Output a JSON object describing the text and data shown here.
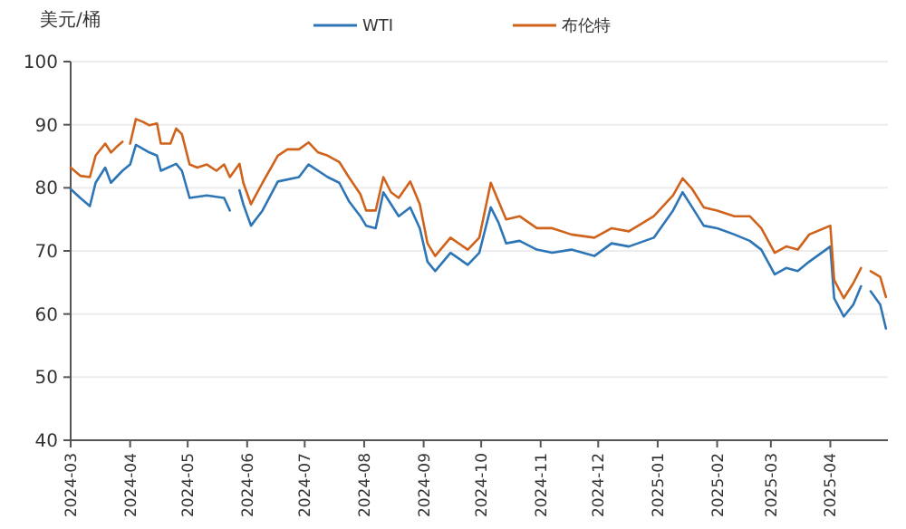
{
  "chart_data": {
    "type": "line",
    "ylabel": "美元/桶",
    "xlim": [
      "2024-03",
      "2025-05"
    ],
    "xticks": [
      "2024-03",
      "2024-04",
      "2024-05",
      "2024-06",
      "2024-07",
      "2024-08",
      "2024-09",
      "2024-10",
      "2024-11",
      "2024-12",
      "2025-01",
      "2025-02",
      "2025-03",
      "2025-04"
    ],
    "ylim": [
      40,
      100
    ],
    "yticks": [
      40,
      50,
      60,
      70,
      80,
      90,
      100
    ],
    "grid": "y",
    "legend": "top",
    "marker": "none",
    "line_style": "solid",
    "series": [
      {
        "name": "WTI",
        "color": "#2e75b6",
        "x": [
          "2024-03-01",
          "2024-03-06",
          "2024-03-11",
          "2024-03-14",
          "2024-03-19",
          "2024-03-22",
          "2024-03-28",
          "2024-04-01",
          "2024-04-04",
          "2024-04-11",
          "2024-04-15",
          "2024-04-17",
          "2024-04-25",
          "2024-04-28",
          "2024-05-02",
          "2024-05-11",
          "2024-05-20",
          "2024-05-23",
          "2024-05-26",
          "2024-05-28",
          "2024-05-30",
          "2024-06-03",
          "2024-06-09",
          "2024-06-17",
          "2024-06-28",
          "2024-07-03",
          "2024-07-13",
          "2024-07-19",
          "2024-07-24",
          "2024-07-30",
          "2024-08-02",
          "2024-08-07",
          "2024-08-11",
          "2024-08-19",
          "2024-08-25",
          "2024-08-30",
          "2024-09-03",
          "2024-09-07",
          "2024-09-15",
          "2024-09-24",
          "2024-09-30",
          "2024-10-06",
          "2024-10-10",
          "2024-10-14",
          "2024-10-21",
          "2024-10-30",
          "2024-11-07",
          "2024-11-17",
          "2024-11-29",
          "2024-12-08",
          "2024-12-17",
          "2024-12-30",
          "2025-01-09",
          "2025-01-14",
          "2025-01-19",
          "2025-01-25",
          "2025-02-01",
          "2025-02-10",
          "2025-02-18",
          "2025-02-24",
          "2025-03-03",
          "2025-03-09",
          "2025-03-15",
          "2025-03-21",
          "2025-04-01",
          "2025-04-03",
          "2025-04-08",
          "2025-04-13",
          "2025-04-17",
          "2025-04-19",
          "2025-04-22",
          "2025-04-27",
          "2025-04-30"
        ],
        "values": [
          79.8,
          78.4,
          77.1,
          80.8,
          83.2,
          80.8,
          82.7,
          83.7,
          86.8,
          85.6,
          85.1,
          82.7,
          83.8,
          82.7,
          78.4,
          78.8,
          78.4,
          76.4,
          null,
          79.6,
          77.4,
          74.0,
          76.4,
          81.0,
          81.7,
          83.7,
          81.7,
          80.8,
          77.9,
          75.5,
          74.0,
          73.6,
          79.3,
          75.5,
          76.9,
          73.6,
          68.3,
          66.8,
          69.7,
          67.8,
          69.7,
          76.9,
          74.5,
          71.2,
          71.6,
          70.2,
          69.7,
          70.2,
          69.2,
          71.2,
          70.7,
          72.1,
          76.4,
          79.3,
          76.9,
          74.0,
          73.6,
          72.6,
          71.6,
          70.2,
          66.3,
          67.3,
          66.8,
          68.3,
          70.7,
          62.5,
          59.6,
          61.5,
          64.4,
          null,
          63.6,
          61.5,
          57.7
        ]
      },
      {
        "name": "布伦特",
        "color": "#d0631c",
        "x": [
          "2024-03-01",
          "2024-03-06",
          "2024-03-11",
          "2024-03-14",
          "2024-03-19",
          "2024-03-22",
          "2024-03-25",
          "2024-03-28",
          "2024-03-30",
          "2024-04-01",
          "2024-04-04",
          "2024-04-08",
          "2024-04-11",
          "2024-04-15",
          "2024-04-17",
          "2024-04-22",
          "2024-04-25",
          "2024-04-28",
          "2024-05-02",
          "2024-05-06",
          "2024-05-11",
          "2024-05-16",
          "2024-05-20",
          "2024-05-23",
          "2024-05-28",
          "2024-05-30",
          "2024-06-03",
          "2024-06-09",
          "2024-06-17",
          "2024-06-22",
          "2024-06-28",
          "2024-07-03",
          "2024-07-08",
          "2024-07-13",
          "2024-07-19",
          "2024-07-24",
          "2024-07-30",
          "2024-08-02",
          "2024-08-07",
          "2024-08-11",
          "2024-08-15",
          "2024-08-19",
          "2024-08-25",
          "2024-08-30",
          "2024-09-03",
          "2024-09-07",
          "2024-09-15",
          "2024-09-24",
          "2024-09-30",
          "2024-10-06",
          "2024-10-10",
          "2024-10-14",
          "2024-10-21",
          "2024-10-30",
          "2024-11-07",
          "2024-11-17",
          "2024-11-29",
          "2024-12-08",
          "2024-12-17",
          "2024-12-30",
          "2025-01-09",
          "2025-01-14",
          "2025-01-19",
          "2025-01-25",
          "2025-02-01",
          "2025-02-10",
          "2025-02-18",
          "2025-02-24",
          "2025-03-03",
          "2025-03-09",
          "2025-03-15",
          "2025-03-21",
          "2025-04-01",
          "2025-04-03",
          "2025-04-08",
          "2025-04-13",
          "2025-04-17",
          "2025-04-19",
          "2025-04-22",
          "2025-04-27",
          "2025-04-30"
        ],
        "values": [
          83.2,
          81.9,
          81.7,
          85.1,
          87.0,
          85.6,
          86.5,
          87.3,
          null,
          87.0,
          90.9,
          90.4,
          89.9,
          90.2,
          87.0,
          87.0,
          89.4,
          88.5,
          83.7,
          83.2,
          83.7,
          82.7,
          83.7,
          81.7,
          83.8,
          80.8,
          77.4,
          80.8,
          85.1,
          86.1,
          86.1,
          87.2,
          85.6,
          85.1,
          84.1,
          81.7,
          79.0,
          76.4,
          76.4,
          81.7,
          79.3,
          78.4,
          81.0,
          77.4,
          71.2,
          69.2,
          72.1,
          70.2,
          72.1,
          80.8,
          77.9,
          75.0,
          75.5,
          73.6,
          73.6,
          72.6,
          72.1,
          73.6,
          73.1,
          75.5,
          78.8,
          81.5,
          79.8,
          76.9,
          76.4,
          75.5,
          75.5,
          73.6,
          69.7,
          70.7,
          70.2,
          72.6,
          74.0,
          65.4,
          62.5,
          64.9,
          67.3,
          null,
          66.8,
          65.9,
          62.7
        ]
      }
    ]
  }
}
